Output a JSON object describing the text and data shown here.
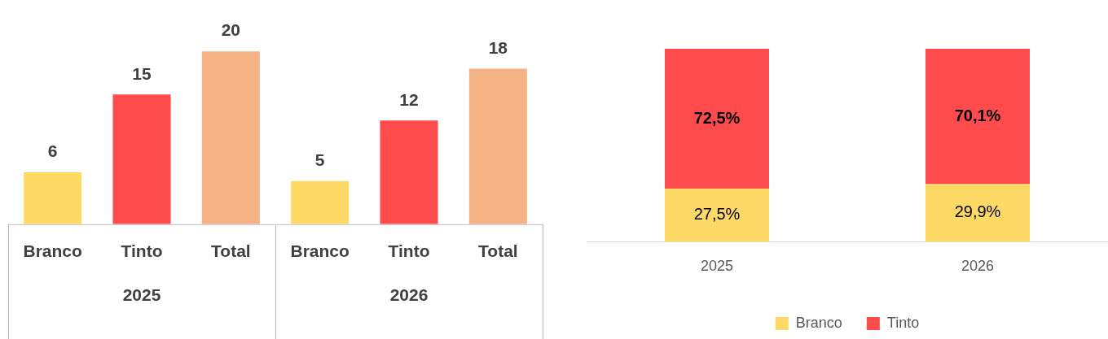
{
  "chart_data": [
    {
      "type": "bar",
      "categories": [
        "Branco",
        "Tinto",
        "Total",
        "Branco",
        "Tinto",
        "Total"
      ],
      "values": [
        6,
        15,
        20,
        5,
        12,
        18
      ],
      "colors": [
        "#ffd966",
        "#ff4b4b",
        "#f4b183",
        "#ffd966",
        "#ff4b4b",
        "#f4b183"
      ],
      "data_labels": true,
      "tick_labels": "x",
      "annotations": [
        "2025",
        "2026"
      ]
    },
    {
      "type": "bar",
      "stacked": true,
      "categories": [
        "2025",
        "2026"
      ],
      "legend": "bottom",
      "tick_labels": "x",
      "series": [
        {
          "name": "Branco",
          "color": "#ffd966",
          "values": [
            27.5,
            29.9
          ],
          "value_labels": [
            "27,5%",
            "29,9%"
          ]
        },
        {
          "name": "Tinto",
          "color": "#ff4b4b",
          "values": [
            72.5,
            70.1
          ],
          "value_labels": [
            "72,5%",
            "70,1%"
          ]
        }
      ]
    }
  ]
}
